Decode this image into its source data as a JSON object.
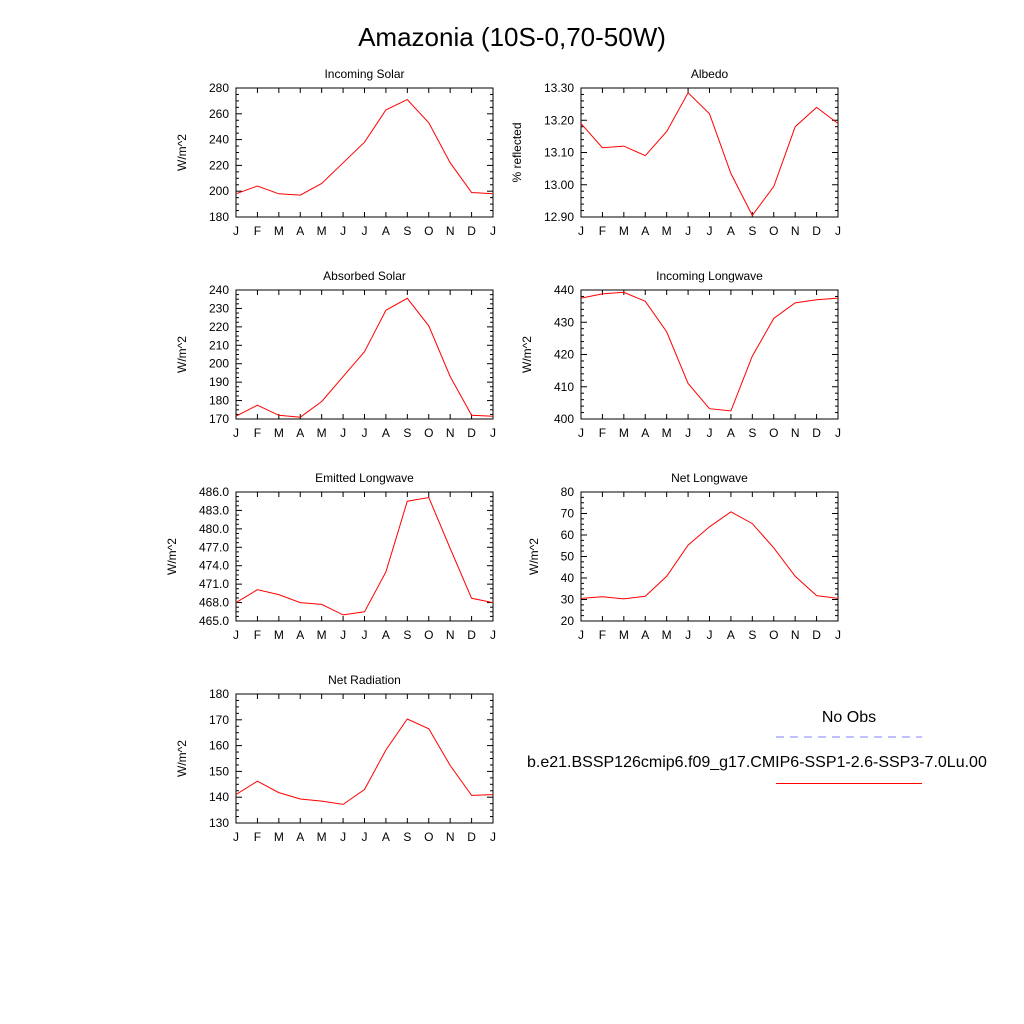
{
  "figure": {
    "title": "Amazonia (10S-0,70-50W)",
    "line_color": "#ff0000",
    "obs_color": "#8080ff"
  },
  "legend": {
    "obs_label": "No Obs",
    "model_label": "b.e21.BSSP126cmip6.f09_g17.CMIP6-SSP1-2.6-SSP3-7.0Lu.00"
  },
  "chart_data": [
    {
      "type": "line",
      "title": "Incoming Solar",
      "ylabel": "W/m^2",
      "categories": [
        "J",
        "F",
        "M",
        "A",
        "M",
        "J",
        "J",
        "A",
        "S",
        "O",
        "N",
        "D",
        "J"
      ],
      "ylim": [
        180,
        280
      ],
      "yticks": [
        "180",
        "200",
        "220",
        "240",
        "260",
        "280"
      ],
      "values": [
        198,
        204,
        198,
        197,
        206,
        222,
        238,
        263,
        271,
        253,
        222,
        199,
        198
      ]
    },
    {
      "type": "line",
      "title": "Albedo",
      "ylabel": "% reflected",
      "categories": [
        "J",
        "F",
        "M",
        "A",
        "M",
        "J",
        "J",
        "A",
        "S",
        "O",
        "N",
        "D",
        "J"
      ],
      "ylim": [
        12.9,
        13.3
      ],
      "yticks": [
        "12.90",
        "13.00",
        "13.10",
        "13.20",
        "13.30"
      ],
      "values": [
        13.19,
        13.115,
        13.12,
        13.09,
        13.165,
        13.285,
        13.22,
        13.035,
        12.905,
        12.995,
        13.18,
        13.24,
        13.19
      ]
    },
    {
      "type": "line",
      "title": "Absorbed Solar",
      "ylabel": "W/m^2",
      "categories": [
        "J",
        "F",
        "M",
        "A",
        "M",
        "J",
        "J",
        "A",
        "S",
        "O",
        "N",
        "D",
        "J"
      ],
      "ylim": [
        170,
        240
      ],
      "yticks": [
        "170",
        "180",
        "190",
        "200",
        "210",
        "220",
        "230",
        "240"
      ],
      "values": [
        171.5,
        177.5,
        172,
        171,
        179.5,
        193,
        206.5,
        229,
        235.5,
        220.5,
        193,
        172,
        171.5
      ]
    },
    {
      "type": "line",
      "title": "Incoming Longwave",
      "ylabel": "W/m^2",
      "categories": [
        "J",
        "F",
        "M",
        "A",
        "M",
        "J",
        "J",
        "A",
        "S",
        "O",
        "N",
        "D",
        "J"
      ],
      "ylim": [
        400,
        440
      ],
      "yticks": [
        "400",
        "410",
        "420",
        "430",
        "440"
      ],
      "values": [
        437.5,
        438.8,
        439.3,
        436.5,
        427,
        411,
        403.2,
        402.5,
        419.5,
        431.2,
        436,
        437,
        437.5
      ]
    },
    {
      "type": "line",
      "title": "Emitted Longwave",
      "ylabel": "W/m^2",
      "categories": [
        "J",
        "F",
        "M",
        "A",
        "M",
        "J",
        "J",
        "A",
        "S",
        "O",
        "N",
        "D",
        "J"
      ],
      "ylim": [
        465,
        486
      ],
      "yticks": [
        "465.0",
        "468.0",
        "471.0",
        "474.0",
        "477.0",
        "480.0",
        "483.0",
        "486.0"
      ],
      "values": [
        468,
        470.1,
        469.3,
        468,
        467.7,
        466,
        466.5,
        473,
        484.5,
        485.1,
        476.8,
        468.7,
        468
      ]
    },
    {
      "type": "line",
      "title": "Net Longwave",
      "ylabel": "W/m^2",
      "categories": [
        "J",
        "F",
        "M",
        "A",
        "M",
        "J",
        "J",
        "A",
        "S",
        "O",
        "N",
        "D",
        "J"
      ],
      "ylim": [
        20,
        80
      ],
      "yticks": [
        "20",
        "30",
        "40",
        "50",
        "60",
        "70",
        "80"
      ],
      "values": [
        30.5,
        31.3,
        30.3,
        31.5,
        40.8,
        55.3,
        63.8,
        70.8,
        65.3,
        54,
        40.8,
        31.8,
        30.5
      ]
    },
    {
      "type": "line",
      "title": "Net Radiation",
      "ylabel": "W/m^2",
      "categories": [
        "J",
        "F",
        "M",
        "A",
        "M",
        "J",
        "J",
        "A",
        "S",
        "O",
        "N",
        "D",
        "J"
      ],
      "ylim": [
        130,
        180
      ],
      "yticks": [
        "130",
        "140",
        "150",
        "160",
        "170",
        "180"
      ],
      "values": [
        141,
        146.2,
        141.8,
        139.3,
        138.5,
        137.2,
        143,
        158.3,
        170.3,
        166.5,
        152.3,
        140.7,
        141
      ]
    }
  ]
}
